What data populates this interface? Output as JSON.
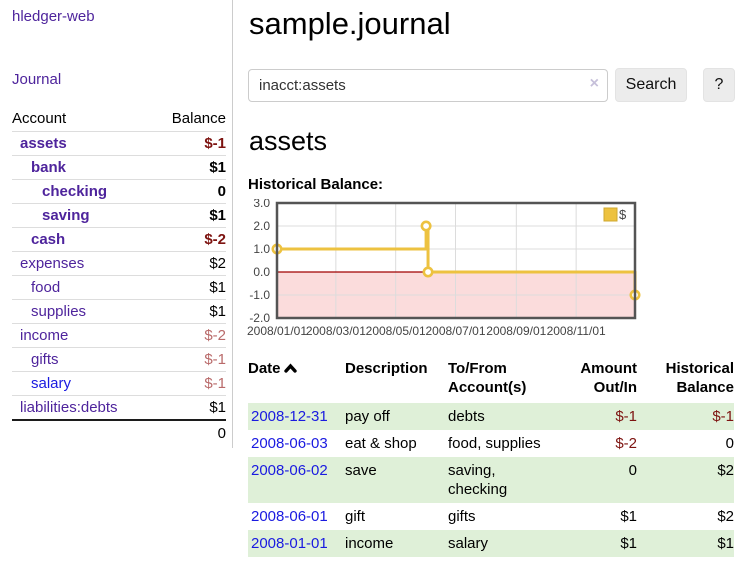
{
  "app": {
    "title": "hledger-web"
  },
  "colors": {
    "purple": "#4e249c",
    "blue": "#1a1ae0",
    "negative": "#7d1310",
    "negative_soft": "#b96a6a",
    "row_shade": "#dff0d8",
    "chart_line": "#edc240",
    "chart_negative_region": "#fbdcdc",
    "chart_zero_line": "#a00000",
    "chart_border": "#545454",
    "chart_grid": "#dcdcdc"
  },
  "sidebar": {
    "journal_label": "Journal",
    "table": {
      "headers": [
        "Account",
        "Balance"
      ],
      "rows": [
        {
          "name": "assets",
          "depth": 0,
          "balance": "$-1",
          "bold": true,
          "neg": "strong"
        },
        {
          "name": "bank",
          "depth": 1,
          "balance": "$1",
          "bold": true,
          "neg": "none"
        },
        {
          "name": "checking",
          "depth": 2,
          "balance": "0",
          "bold": true,
          "neg": "none"
        },
        {
          "name": "saving",
          "depth": 2,
          "balance": "$1",
          "bold": true,
          "neg": "none"
        },
        {
          "name": "cash",
          "depth": 1,
          "balance": "$-2",
          "bold": true,
          "neg": "strong"
        },
        {
          "name": "expenses",
          "depth": 0,
          "balance": "$2",
          "bold": false,
          "neg": "none"
        },
        {
          "name": "food",
          "depth": 1,
          "balance": "$1",
          "bold": false,
          "neg": "none"
        },
        {
          "name": "supplies",
          "depth": 1,
          "balance": "$1",
          "bold": false,
          "neg": "none"
        },
        {
          "name": "income",
          "depth": 0,
          "balance": "$-2",
          "bold": false,
          "neg": "soft"
        },
        {
          "name": "gifts",
          "depth": 1,
          "balance": "$-1",
          "bold": false,
          "neg": "soft"
        },
        {
          "name": "salary",
          "depth": 1,
          "balance": "$-1",
          "bold": false,
          "neg": "soft",
          "unvisited": true
        },
        {
          "name": "liabilities:debts",
          "depth": 0,
          "balance": "$1",
          "bold": false,
          "neg": "none"
        }
      ],
      "total": "0"
    }
  },
  "header": {
    "title": "sample.journal"
  },
  "search": {
    "value": "inacct:assets",
    "clear_icon": "×",
    "button_label": "Search",
    "help_label": "?"
  },
  "account_page": {
    "heading": "assets",
    "chart_label": "Historical Balance:"
  },
  "chart_data": {
    "type": "line",
    "step": true,
    "title": "Historical Balance:",
    "series": [
      {
        "name": "$",
        "points": [
          [
            "2008/01/01",
            1
          ],
          [
            "2008/06/01",
            2
          ],
          [
            "2008/06/03",
            0
          ],
          [
            "2008/12/31",
            -1
          ]
        ]
      }
    ],
    "x_ticks": [
      "2008/01/01",
      "2008/03/01",
      "2008/05/01",
      "2008/07/01",
      "2008/09/01",
      "2008/11/01"
    ],
    "y_ticks": [
      3.0,
      2.0,
      1.0,
      0.0,
      -1.0,
      -2.0
    ],
    "xlim": [
      "2008/01/01",
      "2008/12/31"
    ],
    "ylim": [
      -2,
      3
    ],
    "grid": true,
    "legend_position": "top-right",
    "legend_label": "$"
  },
  "register": {
    "headers": {
      "date": "Date",
      "description": "Description",
      "accounts": "To/From Account(s)",
      "amount": "Amount Out/In",
      "balance": "Historical Balance"
    },
    "rows": [
      {
        "date": "2008-12-31",
        "description": "pay off",
        "accounts": "debts",
        "amount": "$-1",
        "amount_neg": true,
        "balance": "$-1",
        "balance_neg": true,
        "shade": true
      },
      {
        "date": "2008-06-03",
        "description": "eat & shop",
        "accounts": "food, supplies",
        "amount": "$-2",
        "amount_neg": true,
        "balance": "0",
        "balance_neg": false,
        "shade": false
      },
      {
        "date": "2008-06-02",
        "description": "save",
        "accounts": "saving, checking",
        "amount": "0",
        "amount_neg": false,
        "balance": "$2",
        "balance_neg": false,
        "shade": true
      },
      {
        "date": "2008-06-01",
        "description": "gift",
        "accounts": "gifts",
        "amount": "$1",
        "amount_neg": false,
        "balance": "$2",
        "balance_neg": false,
        "shade": false
      },
      {
        "date": "2008-01-01",
        "description": "income",
        "accounts": "salary",
        "amount": "$1",
        "amount_neg": false,
        "balance": "$1",
        "balance_neg": false,
        "shade": true
      }
    ]
  }
}
